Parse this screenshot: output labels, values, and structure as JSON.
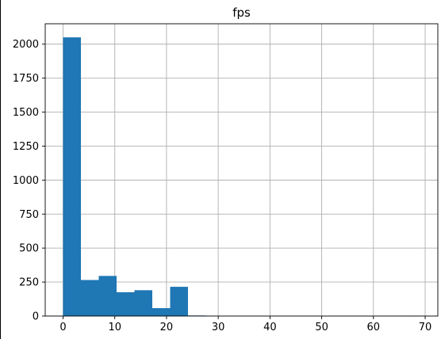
{
  "chart_data": {
    "type": "bar",
    "title": "fps",
    "xlabel": "",
    "ylabel": "",
    "xlim": [
      -3.45,
      72.45
    ],
    "ylim": [
      0,
      2150
    ],
    "xticks": [
      0,
      10,
      20,
      30,
      40,
      50,
      60,
      70
    ],
    "yticks": [
      0,
      250,
      500,
      750,
      1000,
      1250,
      1500,
      1750,
      2000
    ],
    "grid": true,
    "bar_color": "#1f77b4",
    "bin_width": 3.45,
    "bins": [
      {
        "x0": 0.0,
        "x1": 3.45,
        "value": 2050
      },
      {
        "x0": 3.45,
        "x1": 6.9,
        "value": 265
      },
      {
        "x0": 6.9,
        "x1": 10.35,
        "value": 295
      },
      {
        "x0": 10.35,
        "x1": 13.8,
        "value": 175
      },
      {
        "x0": 13.8,
        "x1": 17.25,
        "value": 190
      },
      {
        "x0": 17.25,
        "x1": 20.7,
        "value": 58
      },
      {
        "x0": 20.7,
        "x1": 24.15,
        "value": 215
      },
      {
        "x0": 24.15,
        "x1": 27.6,
        "value": 4
      },
      {
        "x0": 27.6,
        "x1": 31.05,
        "value": 0
      },
      {
        "x0": 31.05,
        "x1": 34.5,
        "value": 0
      },
      {
        "x0": 34.5,
        "x1": 37.95,
        "value": 0
      },
      {
        "x0": 37.95,
        "x1": 41.4,
        "value": 0
      },
      {
        "x0": 41.4,
        "x1": 44.85,
        "value": 0
      },
      {
        "x0": 44.85,
        "x1": 48.3,
        "value": 0
      },
      {
        "x0": 48.3,
        "x1": 51.75,
        "value": 0
      },
      {
        "x0": 51.75,
        "x1": 55.2,
        "value": 0
      },
      {
        "x0": 55.2,
        "x1": 58.65,
        "value": 0
      },
      {
        "x0": 58.65,
        "x1": 62.1,
        "value": 0
      },
      {
        "x0": 62.1,
        "x1": 65.55,
        "value": 0
      },
      {
        "x0": 65.55,
        "x1": 69.0,
        "value": 1
      }
    ]
  }
}
